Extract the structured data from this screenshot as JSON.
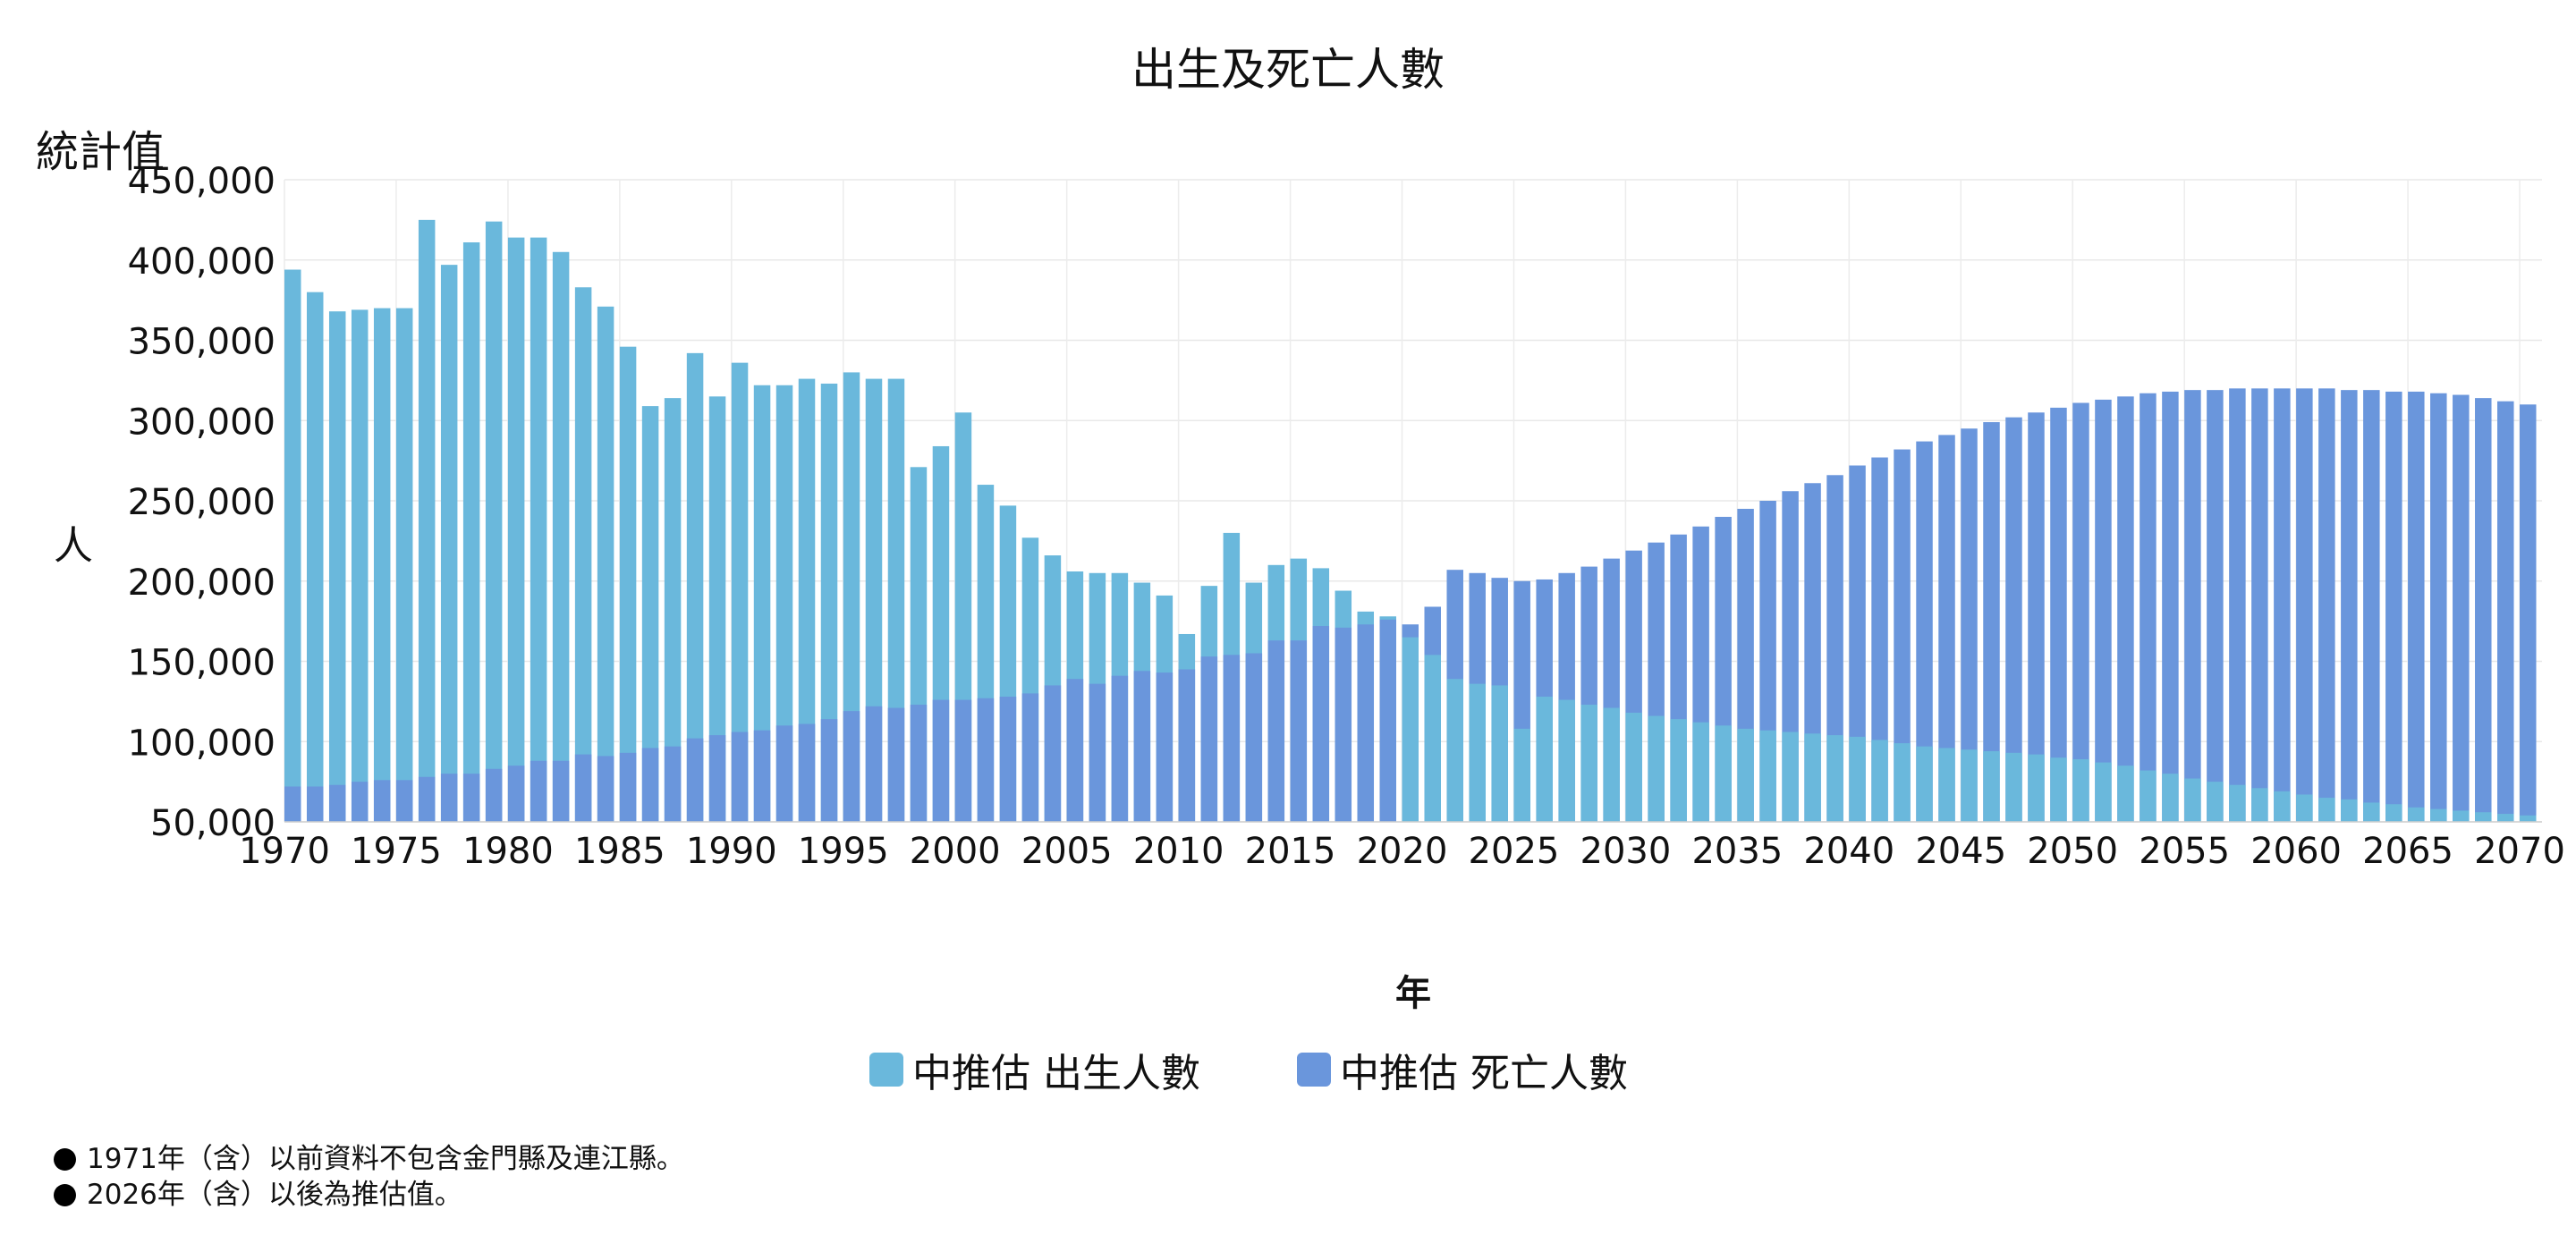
{
  "chart_data": {
    "type": "bar",
    "title": "出生及死亡人數",
    "unit_top": "統計值",
    "ylabel": "人",
    "xlabel": "年",
    "ylim": [
      50000,
      450000
    ],
    "yticks": [
      50000,
      100000,
      150000,
      200000,
      250000,
      300000,
      350000,
      400000,
      450000
    ],
    "ytick_labels": [
      "50,000",
      "100,000",
      "150,000",
      "200,000",
      "250,000",
      "300,000",
      "350,000",
      "400,000",
      "450,000"
    ],
    "xticks": [
      1970,
      1975,
      1980,
      1985,
      1990,
      1995,
      2000,
      2005,
      2010,
      2015,
      2020,
      2025,
      2030,
      2035,
      2040,
      2045,
      2050,
      2055,
      2060,
      2065,
      2070
    ],
    "x_start": 1970,
    "x_end": 2070,
    "grid": true,
    "legend_position": "bottom-center",
    "series": [
      {
        "name": "中推估 出生人數",
        "color": "#6ab8dc",
        "values": [
          394000,
          380000,
          368000,
          369000,
          370000,
          370000,
          425000,
          397000,
          411000,
          424000,
          414000,
          414000,
          405000,
          383000,
          371000,
          346000,
          309000,
          314000,
          342000,
          315000,
          336000,
          322000,
          322000,
          326000,
          323000,
          330000,
          326000,
          326000,
          271000,
          284000,
          305000,
          260000,
          247000,
          227000,
          216000,
          206000,
          205000,
          205000,
          199000,
          191000,
          167000,
          197000,
          230000,
          199000,
          210000,
          214000,
          208000,
          194000,
          181000,
          178000,
          165000,
          154000,
          139000,
          136000,
          135000,
          108000,
          128000,
          126000,
          123000,
          121000,
          118000,
          116000,
          114000,
          112000,
          110000,
          108000,
          107000,
          106000,
          105000,
          104000,
          103000,
          101000,
          99000,
          97000,
          96000,
          95000,
          94000,
          93000,
          92000,
          90000,
          89000,
          87000,
          85000,
          82000,
          80000,
          77000,
          75000,
          73000,
          71000,
          69000,
          67000,
          65000,
          64000,
          62000,
          61000,
          59000,
          58000,
          57000,
          56000,
          55000,
          54000
        ]
      },
      {
        "name": "中推估 死亡人數",
        "color": "#6a96dc",
        "values": [
          72000,
          72000,
          73000,
          75000,
          76000,
          76000,
          78000,
          80000,
          80000,
          83000,
          85000,
          88000,
          88000,
          92000,
          91000,
          93000,
          96000,
          97000,
          102000,
          104000,
          106000,
          107000,
          110000,
          111000,
          114000,
          119000,
          122000,
          121000,
          123000,
          126000,
          126000,
          127000,
          128000,
          130000,
          135000,
          139000,
          136000,
          141000,
          144000,
          143000,
          145000,
          153000,
          154000,
          155000,
          163000,
          163000,
          172000,
          171000,
          173000,
          176000,
          173000,
          184000,
          207000,
          205000,
          202000,
          200000,
          201000,
          205000,
          209000,
          214000,
          219000,
          224000,
          229000,
          234000,
          240000,
          245000,
          250000,
          256000,
          261000,
          266000,
          272000,
          277000,
          282000,
          287000,
          291000,
          295000,
          299000,
          302000,
          305000,
          308000,
          311000,
          313000,
          315000,
          317000,
          318000,
          319000,
          319000,
          320000,
          320000,
          320000,
          320000,
          320000,
          319000,
          319000,
          318000,
          318000,
          317000,
          316000,
          314000,
          312000,
          310000
        ]
      }
    ]
  },
  "legend": {
    "births_label": "中推估 出生人數",
    "deaths_label": "中推估 死亡人數"
  },
  "notes": [
    "1971年（含）以前資料不包含金門縣及連江縣。",
    "2026年（含）以後為推估值。"
  ]
}
